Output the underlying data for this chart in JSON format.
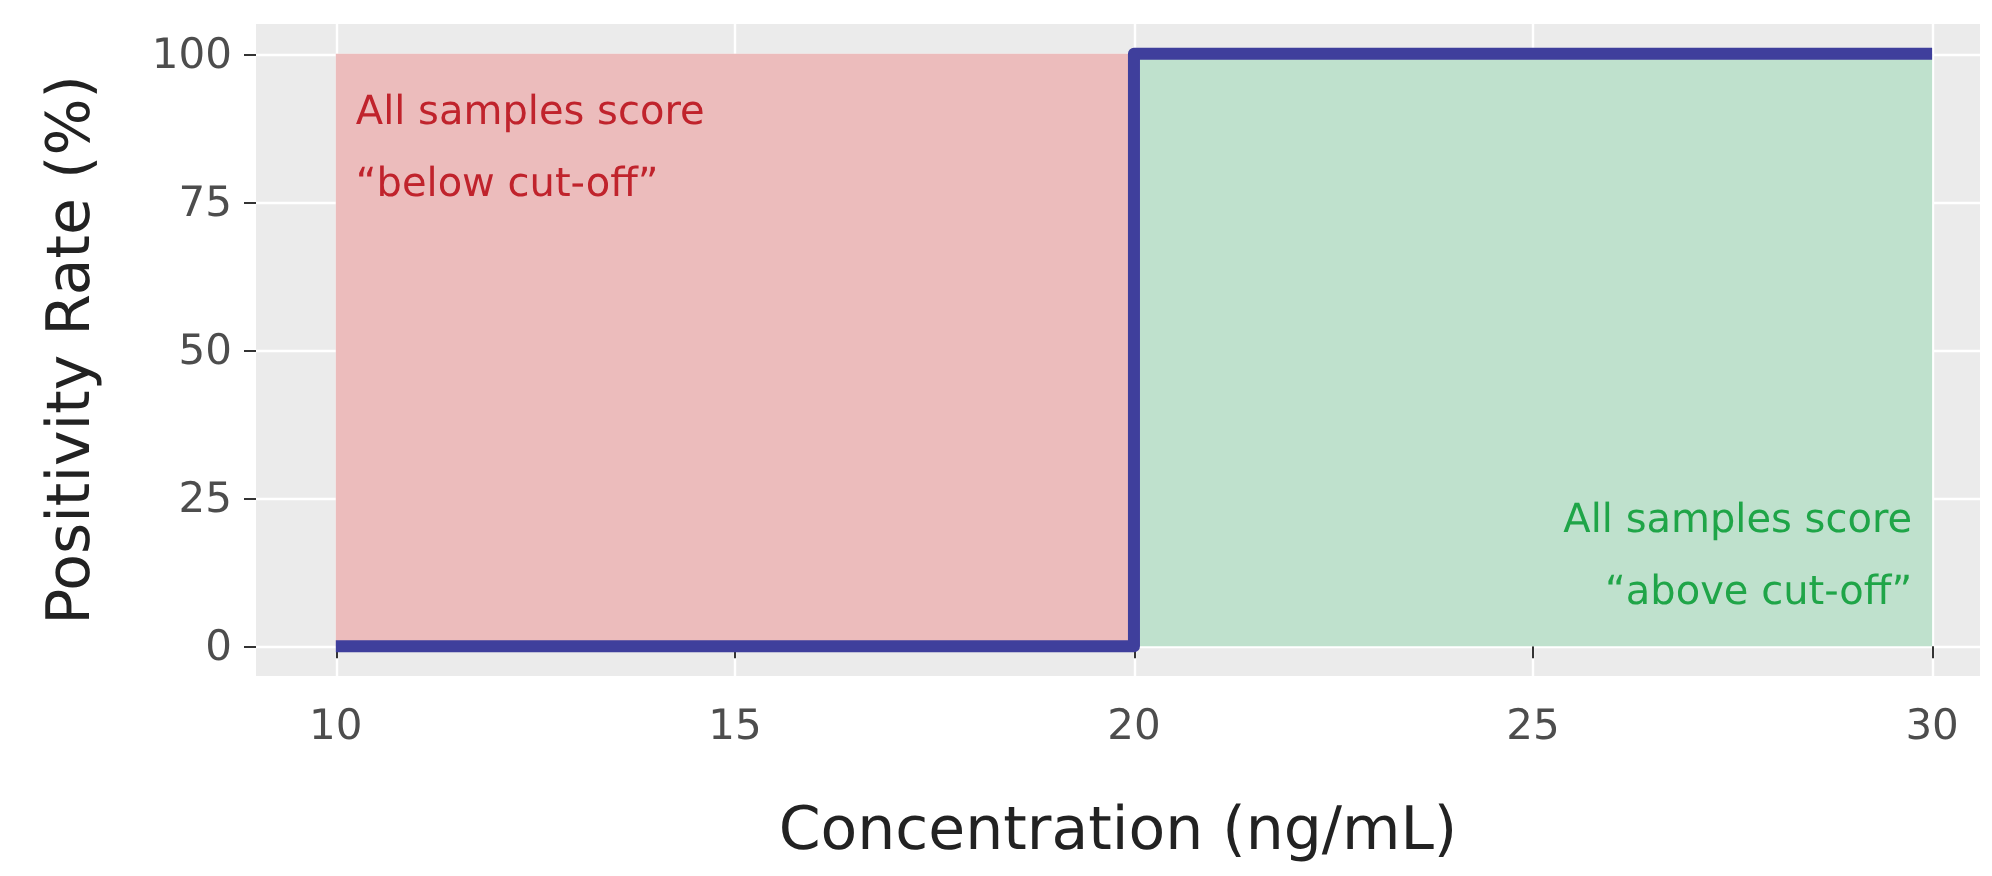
{
  "chart_data": {
    "type": "line",
    "xlabel": "Concentration (ng/mL)",
    "ylabel": "Positivity Rate (%)",
    "series": [
      {
        "color": "#3f3f9c",
        "x": [
          10,
          20,
          20,
          30
        ],
        "values": [
          0,
          0,
          100,
          100
        ]
      }
    ],
    "xlim": [
      9,
      30.6
    ],
    "xticks": [
      10,
      15,
      20,
      25,
      30
    ],
    "ylim": [
      -5,
      105
    ],
    "yticks": [
      0,
      25,
      50,
      75,
      100
    ],
    "bands": [
      {
        "axis": "x",
        "from": 10,
        "to": 20,
        "label": "All samples score\n“below cut-off”",
        "color": "#ecbcbc"
      },
      {
        "axis": "x",
        "from": 20,
        "to": 30,
        "label": "All samples score\n“above cut-off”",
        "color": "#bfe1cd"
      }
    ],
    "grid": true,
    "marker": "none",
    "line_style": "solid"
  }
}
